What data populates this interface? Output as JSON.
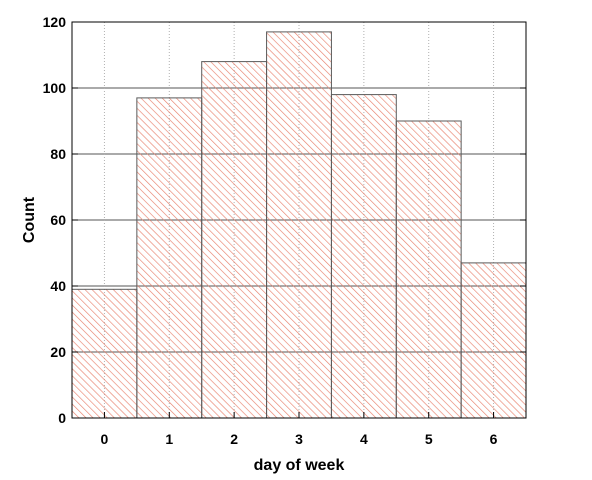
{
  "chart_data": {
    "type": "bar",
    "title": "",
    "xlabel": "day of week",
    "ylabel": "Count",
    "categories": [
      "0",
      "1",
      "2",
      "3",
      "4",
      "5",
      "6"
    ],
    "values": [
      39,
      97,
      108,
      117,
      98,
      90,
      47
    ],
    "xlim": [
      -0.5,
      6.5
    ],
    "ylim": [
      0,
      120
    ],
    "yticks": [
      0,
      20,
      40,
      60,
      80,
      100,
      120
    ],
    "grid": true,
    "bar_fill": "hatched",
    "colors": {
      "bar_hatch": "#e8826e",
      "bar_edge": "#5a5a5a",
      "grid_major": "#555555",
      "grid_minor": "#b0b0b0",
      "axis": "#000000"
    }
  }
}
